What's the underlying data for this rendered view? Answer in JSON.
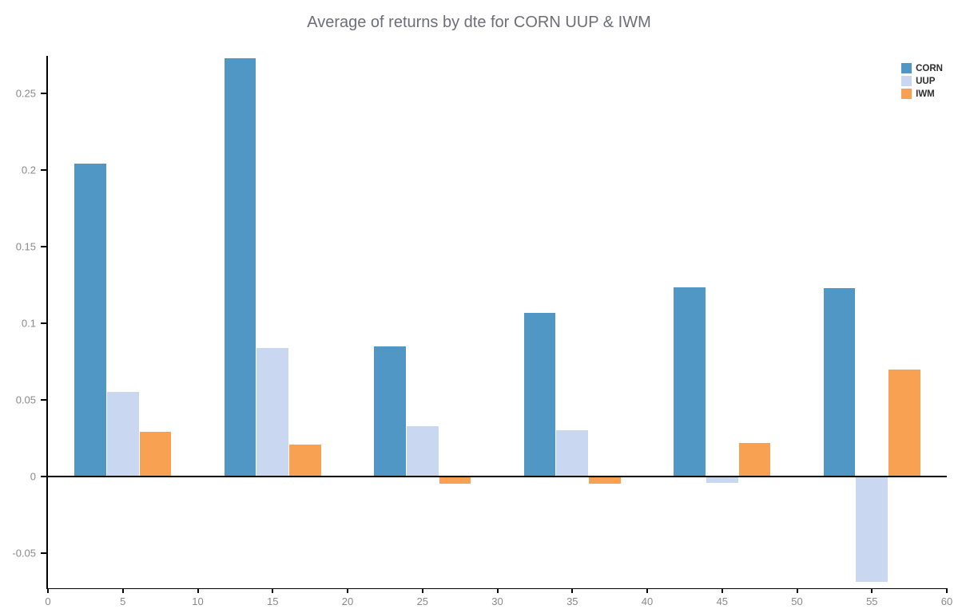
{
  "chart_data": {
    "type": "bar",
    "title": "Average of returns by dte for CORN UUP & IWM",
    "xlabel": "",
    "ylabel": "",
    "categories": [
      5,
      15,
      25,
      35,
      45,
      55
    ],
    "series": [
      {
        "name": "CORN",
        "color": "#5097C6",
        "values": [
          0.204,
          0.273,
          0.085,
          0.107,
          0.1235,
          0.123
        ]
      },
      {
        "name": "UUP",
        "color": "#C9D8F0",
        "values": [
          0.055,
          0.084,
          0.033,
          0.03,
          -0.004,
          -0.069
        ]
      },
      {
        "name": "IWM",
        "color": "#F9A152",
        "values": [
          0.029,
          0.021,
          -0.005,
          -0.005,
          0.022,
          0.07
        ]
      }
    ],
    "xlim": [
      0,
      60
    ],
    "ylim": [
      -0.073,
      0.2745
    ],
    "xticks": [
      0,
      5,
      10,
      15,
      20,
      25,
      30,
      35,
      40,
      45,
      50,
      55,
      60
    ],
    "yticks": [
      -0.05,
      0,
      0.05,
      0.1,
      0.15,
      0.2,
      0.25
    ],
    "grid": false,
    "legend_position": "top-right",
    "bar_width_units": 2.13,
    "series_offsets_units": [
      -2.17,
      0,
      2.17
    ],
    "colors": {
      "title": "#6e6e78",
      "tick_label": "#8a8a8a",
      "axis": "#000000"
    }
  }
}
